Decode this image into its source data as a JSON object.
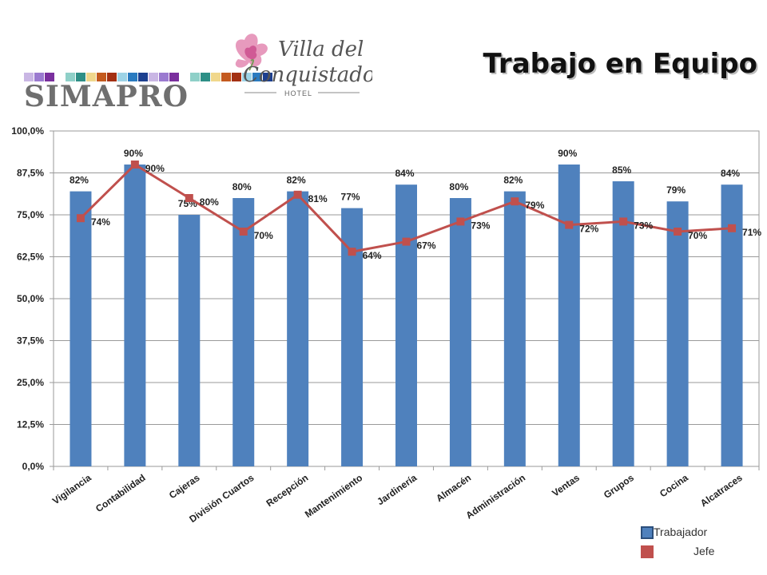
{
  "header": {
    "brand": "SIMAPRO",
    "hotel_name_line1": "Villa del",
    "hotel_name_line2": "Conquistador",
    "hotel_sub": "HOTEL",
    "title": "Trabajo en Equipo",
    "stripe_colors": [
      "#c9b6e4",
      "#9b7ad0",
      "#7a2f9e",
      "#ffffff",
      "#8fd0c8",
      "#2e8f86",
      "#f0d78c",
      "#c45a1e",
      "#a33012",
      "#9dd3e6",
      "#2a7bc0",
      "#1c3f8f",
      "#c9b6e4",
      "#9b7ad0",
      "#7a2f9e",
      "#ffffff",
      "#8fd0c8",
      "#2e8f86",
      "#f0d78c",
      "#c45a1e",
      "#a33012",
      "#9dd3e6",
      "#2a7bc0",
      "#1c3f8f"
    ]
  },
  "chart_data": {
    "type": "bar",
    "title": "Trabajo en Equipo",
    "categories": [
      "Vigilancia",
      "Contabilidad",
      "Cajeras",
      "División Cuartos",
      "Recepción",
      "Mantenimiento",
      "Jardinería",
      "Almacén",
      "Administración",
      "Ventas",
      "Grupos",
      "Cocina",
      "Alcatraces"
    ],
    "series": [
      {
        "name": "Trabajador",
        "kind": "bar",
        "color": "#4f81bd",
        "values": [
          82,
          90,
          75,
          80,
          82,
          77,
          84,
          80,
          82,
          90,
          85,
          79,
          84
        ],
        "labels": [
          "82%",
          "90%",
          "75%",
          "80%",
          "82%",
          "77%",
          "84%",
          "80%",
          "82%",
          "90%",
          "85%",
          "79%",
          "84%"
        ]
      },
      {
        "name": "Jefe",
        "kind": "line",
        "color": "#c0504d",
        "values": [
          74,
          90,
          80,
          70,
          81,
          64,
          67,
          73,
          79,
          72,
          73,
          70,
          71
        ],
        "labels": [
          "74%",
          "90%",
          "80%",
          "70%",
          "81%",
          "64%",
          "67%",
          "73%",
          "79%",
          "72%",
          "73%",
          "70%",
          "71%"
        ]
      }
    ],
    "ylim": [
      0,
      100
    ],
    "yticks": [
      0,
      12.5,
      25,
      37.5,
      50,
      62.5,
      75,
      87.5,
      100
    ],
    "ytick_labels": [
      "0,0%",
      "12,5%",
      "25,0%",
      "37,5%",
      "50,0%",
      "62,5%",
      "75,0%",
      "87,5%",
      "100,0%"
    ],
    "grid": true,
    "legend_position": "bottom-right"
  }
}
